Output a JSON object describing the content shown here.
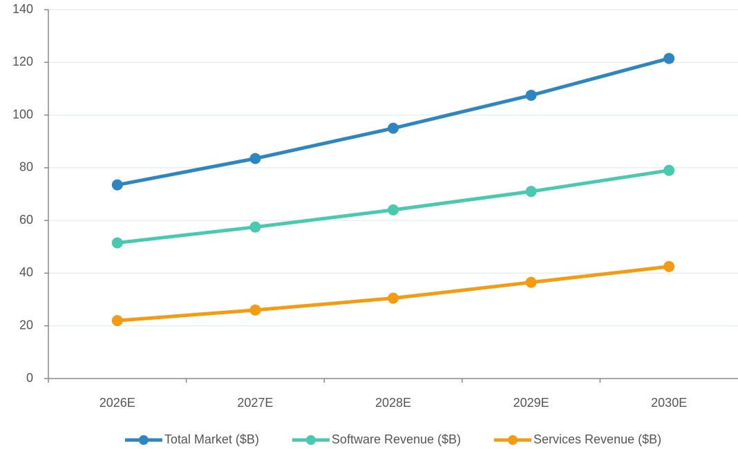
{
  "chart_data": {
    "type": "line",
    "categories": [
      "2026E",
      "2027E",
      "2028E",
      "2029E",
      "2030E"
    ],
    "series": [
      {
        "name": "Total Market ($B)",
        "color": "#2e86c1",
        "values": [
          73.5,
          83.5,
          95,
          107.5,
          121.5
        ]
      },
      {
        "name": "Software Revenue ($B)",
        "color": "#48c9b0",
        "values": [
          51.5,
          57.5,
          64,
          71,
          79
        ]
      },
      {
        "name": "Services Revenue ($B)",
        "color": "#f39c12",
        "values": [
          22,
          26,
          30.5,
          36.5,
          42.5
        ]
      }
    ],
    "ylim": [
      0,
      140
    ],
    "yticks": [
      0,
      20,
      40,
      60,
      80,
      100,
      120,
      140
    ],
    "grid": true,
    "legend": "bottom"
  }
}
